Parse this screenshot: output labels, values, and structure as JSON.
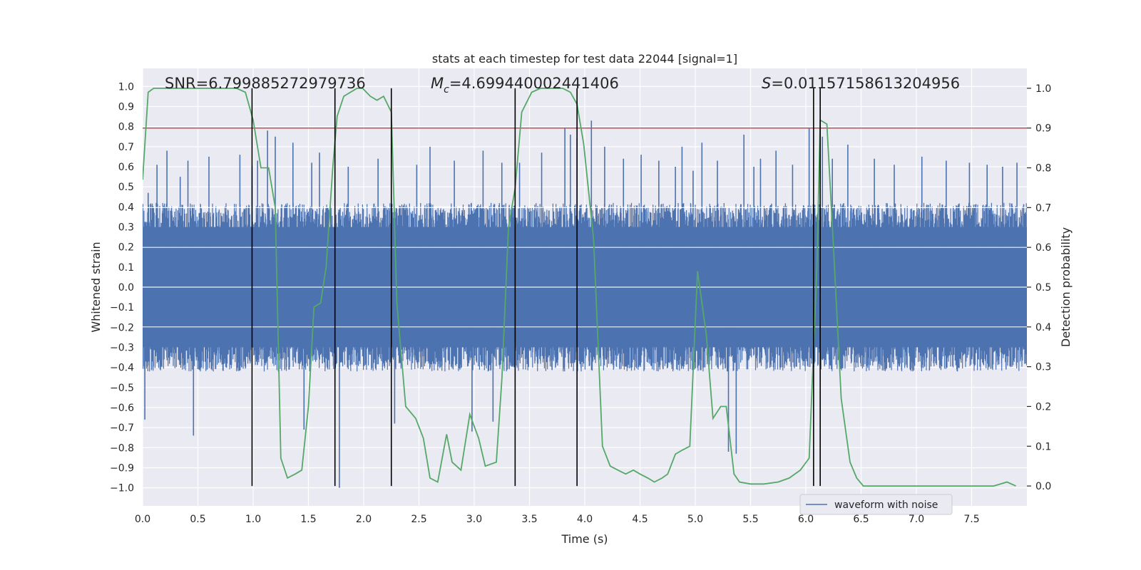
{
  "chart_data": {
    "type": "line",
    "title": "stats at each timestep for test data 22044 [signal=1]",
    "xlabel": "Time (s)",
    "ylabel_left": "Whitened strain",
    "ylabel_right": "Detection probability",
    "xlim": [
      0,
      8
    ],
    "ylim_left": [
      -1.09,
      1.09
    ],
    "ylim_right": [
      -0.05,
      1.05
    ],
    "x_ticks": [
      "0.0",
      "0.5",
      "1.0",
      "1.5",
      "2.0",
      "2.5",
      "3.0",
      "3.5",
      "4.0",
      "4.5",
      "5.0",
      "5.5",
      "6.0",
      "6.5",
      "7.0",
      "7.5"
    ],
    "y_left_ticks": [
      "1.0",
      "0.9",
      "0.8",
      "0.7",
      "0.6",
      "0.5",
      "0.4",
      "0.3",
      "0.2",
      "0.1",
      "0.0",
      "-0.1",
      "-0.2",
      "-0.3",
      "-0.4",
      "-0.5",
      "-0.6",
      "-0.7",
      "-0.8",
      "-0.9",
      "-1.0"
    ],
    "y_right_ticks": [
      "1.0",
      "0.9",
      "0.8",
      "0.7",
      "0.6",
      "0.5",
      "0.4",
      "0.3",
      "0.2",
      "0.1",
      "0.0"
    ],
    "annotations": {
      "snr": "SNR=6.799885272979736",
      "mc_symbol": "M",
      "mc_sub": "c",
      "mc_value": "=4.699440002441406",
      "s_symbol": "S",
      "s_value": "=0.01157158613204956"
    },
    "legend": {
      "label": "waveform with noise",
      "location": "lower right"
    },
    "threshold": {
      "value": 0.9,
      "color": "#c44e52"
    },
    "vertical_markers": [
      0.99,
      1.74,
      2.25,
      3.37,
      3.93,
      6.07,
      6.13
    ],
    "strain_series": {
      "name": "waveform with noise",
      "color": "#4c72b0",
      "dt": 0.0025,
      "band_q": 0.3,
      "spikes": [
        [
          0.02,
          -0.66
        ],
        [
          0.05,
          0.47
        ],
        [
          0.13,
          0.61
        ],
        [
          0.22,
          0.68
        ],
        [
          0.34,
          0.55
        ],
        [
          0.41,
          0.63
        ],
        [
          0.46,
          -0.74
        ],
        [
          0.6,
          0.65
        ],
        [
          0.88,
          0.66
        ],
        [
          0.99,
          0.6
        ],
        [
          1.04,
          0.63
        ],
        [
          1.13,
          0.78
        ],
        [
          1.2,
          0.75
        ],
        [
          1.36,
          0.72
        ],
        [
          1.46,
          -0.71
        ],
        [
          1.53,
          0.62
        ],
        [
          1.6,
          0.67
        ],
        [
          1.78,
          -1.0
        ],
        [
          1.86,
          0.6
        ],
        [
          2.13,
          0.64
        ],
        [
          2.28,
          -0.68
        ],
        [
          2.48,
          0.61
        ],
        [
          2.6,
          0.7
        ],
        [
          2.82,
          0.63
        ],
        [
          2.98,
          -0.72
        ],
        [
          3.08,
          0.68
        ],
        [
          3.17,
          -0.67
        ],
        [
          3.25,
          0.62
        ],
        [
          3.41,
          0.62
        ],
        [
          3.61,
          0.67
        ],
        [
          3.82,
          0.79
        ],
        [
          3.87,
          0.76
        ],
        [
          3.93,
          0.74
        ],
        [
          4.06,
          0.83
        ],
        [
          4.18,
          0.7
        ],
        [
          4.35,
          0.64
        ],
        [
          4.51,
          0.66
        ],
        [
          4.67,
          0.63
        ],
        [
          4.82,
          0.6
        ],
        [
          4.88,
          0.7
        ],
        [
          4.98,
          0.58
        ],
        [
          5.06,
          0.72
        ],
        [
          5.2,
          0.63
        ],
        [
          5.3,
          -0.82
        ],
        [
          5.37,
          -0.83
        ],
        [
          5.44,
          0.76
        ],
        [
          5.53,
          0.6
        ],
        [
          5.59,
          0.64
        ],
        [
          5.73,
          0.68
        ],
        [
          5.88,
          0.61
        ],
        [
          6.03,
          0.79
        ],
        [
          6.15,
          0.75
        ],
        [
          6.24,
          0.64
        ],
        [
          6.38,
          0.71
        ],
        [
          6.62,
          0.64
        ],
        [
          6.8,
          0.61
        ],
        [
          7.05,
          0.65
        ],
        [
          7.27,
          0.63
        ],
        [
          7.48,
          0.62
        ],
        [
          7.64,
          0.61
        ],
        [
          7.78,
          0.6
        ],
        [
          7.91,
          0.62
        ]
      ]
    },
    "probability_series": {
      "name": "detection probability",
      "color": "#55a868",
      "x": [
        0.0,
        0.05,
        0.1,
        0.2,
        0.3,
        0.4,
        0.5,
        0.6,
        0.7,
        0.8,
        0.85,
        0.93,
        1.0,
        1.07,
        1.14,
        1.2,
        1.25,
        1.31,
        1.38,
        1.44,
        1.5,
        1.55,
        1.61,
        1.66,
        1.72,
        1.76,
        1.82,
        1.88,
        1.94,
        1.99,
        2.06,
        2.12,
        2.18,
        2.25,
        2.3,
        2.38,
        2.47,
        2.54,
        2.6,
        2.67,
        2.75,
        2.8,
        2.88,
        2.96,
        3.04,
        3.1,
        3.2,
        3.25,
        3.31,
        3.37,
        3.43,
        3.52,
        3.6,
        3.67,
        3.73,
        3.8,
        3.87,
        3.93,
        3.99,
        4.08,
        4.16,
        4.23,
        4.3,
        4.37,
        4.44,
        4.5,
        4.57,
        4.63,
        4.7,
        4.75,
        4.82,
        4.88,
        4.95,
        5.02,
        5.1,
        5.16,
        5.23,
        5.28,
        5.35,
        5.4,
        5.5,
        5.62,
        5.75,
        5.85,
        5.95,
        6.03,
        6.1,
        6.13,
        6.19,
        6.25,
        6.32,
        6.4,
        6.46,
        6.52,
        6.6,
        6.75,
        7.0,
        7.3,
        7.55,
        7.7,
        7.82,
        7.9
      ],
      "y": [
        0.77,
        0.99,
        1.0,
        1.0,
        1.0,
        1.0,
        1.0,
        1.0,
        1.0,
        1.0,
        1.0,
        0.99,
        0.92,
        0.8,
        0.8,
        0.7,
        0.07,
        0.02,
        0.03,
        0.04,
        0.2,
        0.45,
        0.46,
        0.55,
        0.8,
        0.93,
        0.98,
        0.99,
        1.0,
        1.0,
        0.98,
        0.97,
        0.98,
        0.94,
        0.46,
        0.2,
        0.17,
        0.12,
        0.02,
        0.01,
        0.13,
        0.06,
        0.04,
        0.18,
        0.12,
        0.05,
        0.06,
        0.27,
        0.65,
        0.75,
        0.94,
        0.99,
        1.0,
        1.0,
        1.0,
        1.0,
        0.99,
        0.96,
        0.86,
        0.62,
        0.1,
        0.05,
        0.04,
        0.03,
        0.04,
        0.03,
        0.02,
        0.01,
        0.02,
        0.03,
        0.08,
        0.09,
        0.1,
        0.54,
        0.38,
        0.17,
        0.2,
        0.2,
        0.03,
        0.01,
        0.005,
        0.005,
        0.01,
        0.02,
        0.04,
        0.07,
        0.55,
        0.92,
        0.91,
        0.6,
        0.22,
        0.06,
        0.02,
        0.0,
        0.0,
        0.0,
        0.0,
        0.0,
        0.0,
        0.0,
        0.01,
        0.0
      ]
    }
  }
}
